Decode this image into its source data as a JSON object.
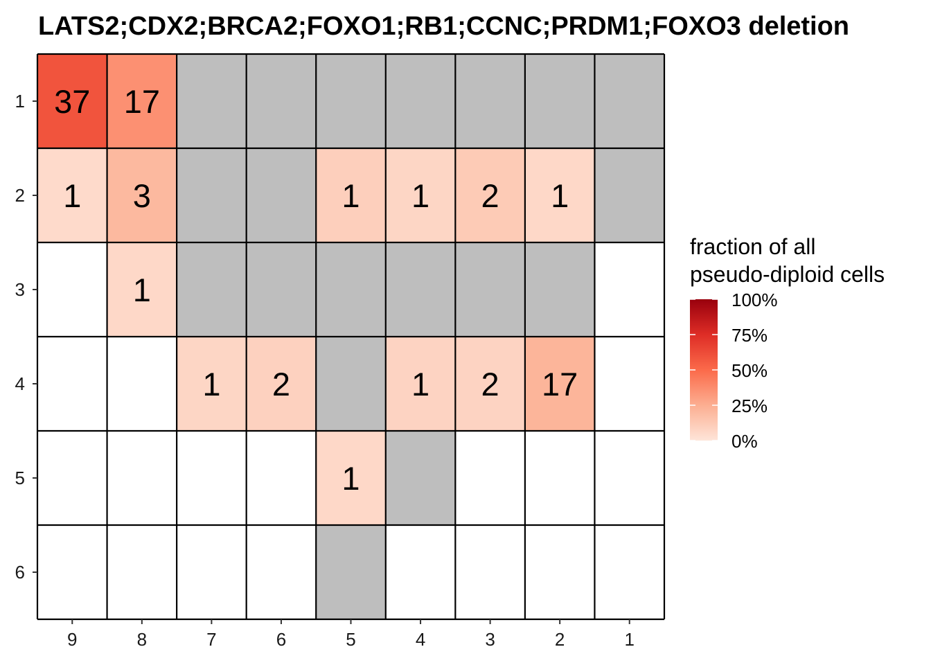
{
  "chart_data": {
    "type": "heatmap",
    "title": "LATS2;CDX2;BRCA2;FOXO1;RB1;CCNC;PRDM1;FOXO3 deletion",
    "x_categories": [
      "9",
      "8",
      "7",
      "6",
      "5",
      "4",
      "3",
      "2",
      "1"
    ],
    "y_categories": [
      "1",
      "2",
      "3",
      "4",
      "5",
      "6"
    ],
    "missing_color": "#bebebe",
    "empty_color": "#ffffff",
    "grid_color": "#000000",
    "cells": [
      {
        "x": "9",
        "y": "1",
        "label": "37",
        "fraction": 0.59
      },
      {
        "x": "8",
        "y": "1",
        "label": "17",
        "fraction": 0.36
      },
      {
        "x": "7",
        "y": "1",
        "missing": true
      },
      {
        "x": "6",
        "y": "1",
        "missing": true
      },
      {
        "x": "5",
        "y": "1",
        "missing": true
      },
      {
        "x": "4",
        "y": "1",
        "missing": true
      },
      {
        "x": "3",
        "y": "1",
        "missing": true
      },
      {
        "x": "2",
        "y": "1",
        "missing": true
      },
      {
        "x": "1",
        "y": "1",
        "missing": true
      },
      {
        "x": "9",
        "y": "2",
        "label": "1",
        "fraction": 0.05
      },
      {
        "x": "8",
        "y": "2",
        "label": "3",
        "fraction": 0.2
      },
      {
        "x": "7",
        "y": "2",
        "missing": true
      },
      {
        "x": "6",
        "y": "2",
        "missing": true
      },
      {
        "x": "5",
        "y": "2",
        "label": "1",
        "fraction": 0.1
      },
      {
        "x": "4",
        "y": "2",
        "label": "1",
        "fraction": 0.07
      },
      {
        "x": "3",
        "y": "2",
        "label": "2",
        "fraction": 0.12
      },
      {
        "x": "2",
        "y": "2",
        "label": "1",
        "fraction": 0.06
      },
      {
        "x": "1",
        "y": "2",
        "missing": true
      },
      {
        "x": "8",
        "y": "3",
        "label": "1",
        "fraction": 0.06
      },
      {
        "x": "7",
        "y": "3",
        "missing": true
      },
      {
        "x": "6",
        "y": "3",
        "missing": true
      },
      {
        "x": "5",
        "y": "3",
        "missing": true
      },
      {
        "x": "4",
        "y": "3",
        "missing": true
      },
      {
        "x": "3",
        "y": "3",
        "missing": true
      },
      {
        "x": "2",
        "y": "3",
        "missing": true
      },
      {
        "x": "7",
        "y": "4",
        "label": "1",
        "fraction": 0.07
      },
      {
        "x": "6",
        "y": "4",
        "label": "2",
        "fraction": 0.09
      },
      {
        "x": "5",
        "y": "4",
        "missing": true
      },
      {
        "x": "4",
        "y": "4",
        "label": "1",
        "fraction": 0.08
      },
      {
        "x": "3",
        "y": "4",
        "label": "2",
        "fraction": 0.08
      },
      {
        "x": "2",
        "y": "4",
        "label": "17",
        "fraction": 0.22
      },
      {
        "x": "5",
        "y": "5",
        "label": "1",
        "fraction": 0.06
      },
      {
        "x": "4",
        "y": "5",
        "missing": true
      },
      {
        "x": "5",
        "y": "6",
        "missing": true
      }
    ],
    "legend": {
      "title_lines": [
        "fraction of all",
        "pseudo-diploid cells"
      ],
      "ticks": [
        {
          "value": 1.0,
          "label": "100%"
        },
        {
          "value": 0.75,
          "label": "75%"
        },
        {
          "value": 0.5,
          "label": "50%"
        },
        {
          "value": 0.25,
          "label": "25%"
        },
        {
          "value": 0.0,
          "label": "0%"
        }
      ],
      "color_stops": [
        {
          "value": 0.0,
          "color": "#fee5d9"
        },
        {
          "value": 0.25,
          "color": "#fcae91"
        },
        {
          "value": 0.5,
          "color": "#fb6a4a"
        },
        {
          "value": 0.75,
          "color": "#de2d26"
        },
        {
          "value": 1.0,
          "color": "#99000d"
        }
      ]
    }
  }
}
